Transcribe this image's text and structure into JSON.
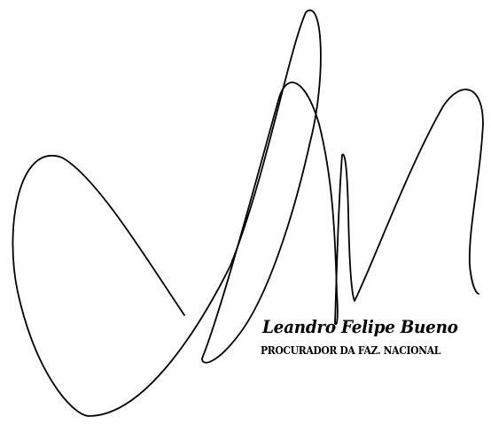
{
  "stamp": {
    "name": "Leandro Felipe Bueno",
    "title": "PROCURADOR DA FAZ. NACIONAL"
  },
  "signature": {
    "ink_color": "#000000"
  },
  "page": {
    "background": "#ffffff"
  }
}
